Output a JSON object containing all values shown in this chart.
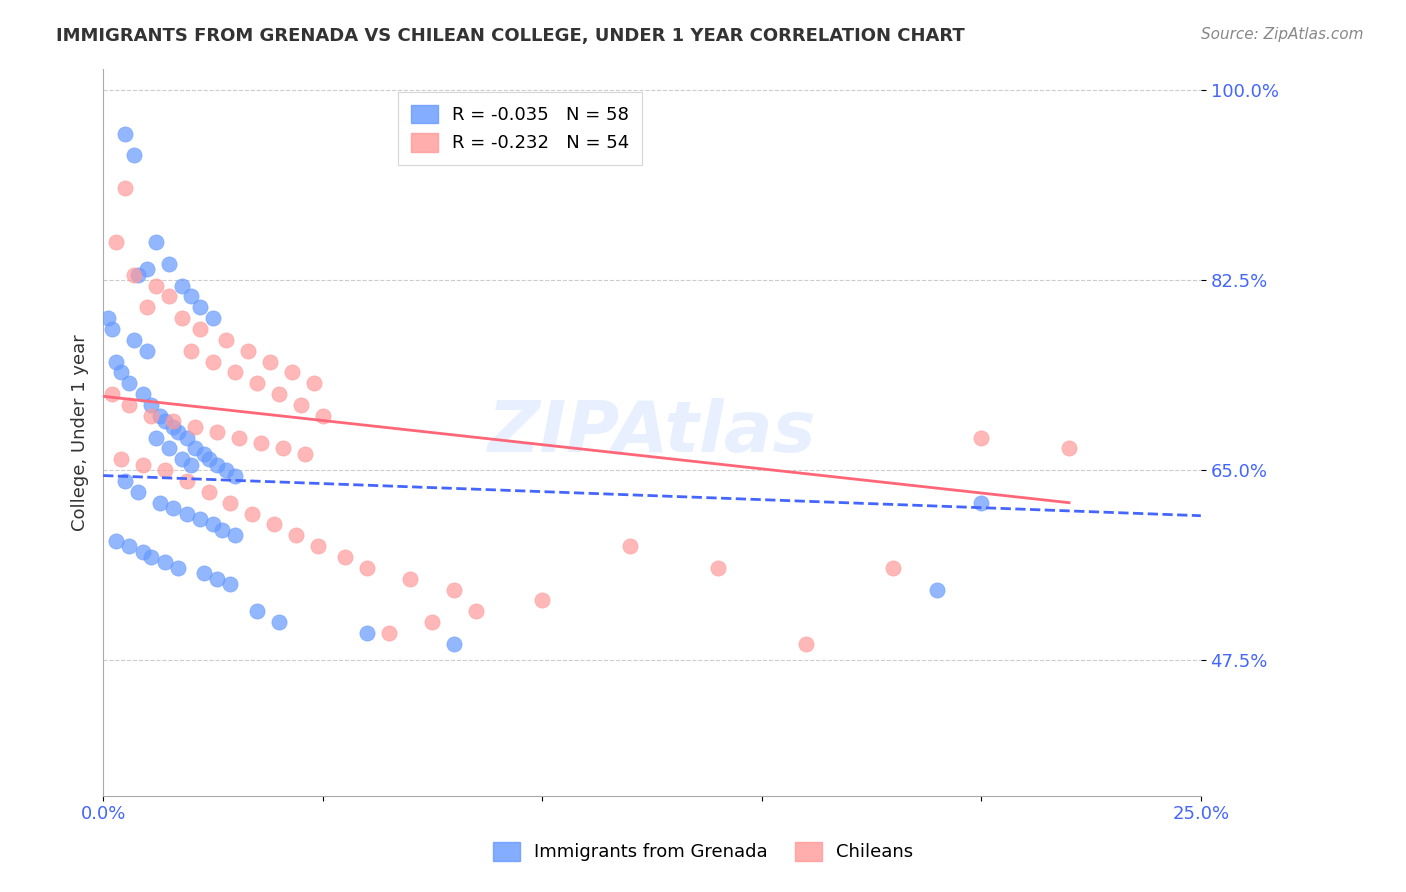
{
  "title": "IMMIGRANTS FROM GRENADA VS CHILEAN COLLEGE, UNDER 1 YEAR CORRELATION CHART",
  "source": "Source: ZipAtlas.com",
  "xlabel": "",
  "ylabel": "College, Under 1 year",
  "xlim": [
    0.0,
    0.25
  ],
  "ylim": [
    0.35,
    1.02
  ],
  "yticks": [
    0.475,
    0.65,
    0.825,
    1.0
  ],
  "ytick_labels": [
    "47.5%",
    "65.0%",
    "82.5%",
    "100.0%"
  ],
  "xticks": [
    0.0,
    0.05,
    0.1,
    0.15,
    0.2,
    0.25
  ],
  "xtick_labels": [
    "0.0%",
    "",
    "",
    "",
    "",
    "25.0%"
  ],
  "legend_r1": "R = -0.035",
  "legend_n1": "N = 58",
  "legend_r2": "R = -0.232",
  "legend_n2": "N = 54",
  "blue_color": "#6699ff",
  "pink_color": "#ff9999",
  "blue_line_color": "#4466ff",
  "pink_line_color": "#ff6677",
  "title_color": "#333333",
  "axis_label_color": "#333333",
  "tick_color": "#4466ff",
  "grid_color": "#cccccc",
  "watermark": "ZIPAtlas",
  "blue_scatter_x": [
    0.005,
    0.007,
    0.012,
    0.015,
    0.008,
    0.01,
    0.018,
    0.02,
    0.022,
    0.025,
    0.003,
    0.004,
    0.006,
    0.009,
    0.011,
    0.013,
    0.014,
    0.016,
    0.017,
    0.019,
    0.021,
    0.023,
    0.024,
    0.026,
    0.028,
    0.03,
    0.002,
    0.001,
    0.007,
    0.01,
    0.012,
    0.015,
    0.018,
    0.02,
    0.005,
    0.008,
    0.013,
    0.016,
    0.019,
    0.022,
    0.025,
    0.027,
    0.03,
    0.003,
    0.006,
    0.009,
    0.011,
    0.014,
    0.017,
    0.023,
    0.026,
    0.029,
    0.035,
    0.04,
    0.06,
    0.08,
    0.19,
    0.2
  ],
  "blue_scatter_y": [
    0.96,
    0.94,
    0.86,
    0.84,
    0.83,
    0.835,
    0.82,
    0.81,
    0.8,
    0.79,
    0.75,
    0.74,
    0.73,
    0.72,
    0.71,
    0.7,
    0.695,
    0.69,
    0.685,
    0.68,
    0.67,
    0.665,
    0.66,
    0.655,
    0.65,
    0.645,
    0.78,
    0.79,
    0.77,
    0.76,
    0.68,
    0.67,
    0.66,
    0.655,
    0.64,
    0.63,
    0.62,
    0.615,
    0.61,
    0.605,
    0.6,
    0.595,
    0.59,
    0.585,
    0.58,
    0.575,
    0.57,
    0.565,
    0.56,
    0.555,
    0.55,
    0.545,
    0.52,
    0.51,
    0.5,
    0.49,
    0.54,
    0.62
  ],
  "pink_scatter_x": [
    0.005,
    0.01,
    0.015,
    0.02,
    0.025,
    0.03,
    0.035,
    0.04,
    0.045,
    0.05,
    0.003,
    0.007,
    0.012,
    0.018,
    0.022,
    0.028,
    0.033,
    0.038,
    0.043,
    0.048,
    0.002,
    0.006,
    0.011,
    0.016,
    0.021,
    0.026,
    0.031,
    0.036,
    0.041,
    0.046,
    0.004,
    0.009,
    0.014,
    0.019,
    0.024,
    0.029,
    0.034,
    0.039,
    0.044,
    0.049,
    0.055,
    0.06,
    0.07,
    0.08,
    0.1,
    0.12,
    0.14,
    0.16,
    0.18,
    0.2,
    0.065,
    0.075,
    0.085,
    0.22
  ],
  "pink_scatter_y": [
    0.91,
    0.8,
    0.81,
    0.76,
    0.75,
    0.74,
    0.73,
    0.72,
    0.71,
    0.7,
    0.86,
    0.83,
    0.82,
    0.79,
    0.78,
    0.77,
    0.76,
    0.75,
    0.74,
    0.73,
    0.72,
    0.71,
    0.7,
    0.695,
    0.69,
    0.685,
    0.68,
    0.675,
    0.67,
    0.665,
    0.66,
    0.655,
    0.65,
    0.64,
    0.63,
    0.62,
    0.61,
    0.6,
    0.59,
    0.58,
    0.57,
    0.56,
    0.55,
    0.54,
    0.53,
    0.58,
    0.56,
    0.49,
    0.56,
    0.68,
    0.5,
    0.51,
    0.52,
    0.67
  ],
  "blue_trend_x": [
    0.0,
    0.25
  ],
  "blue_trend_y": [
    0.645,
    0.608
  ],
  "pink_trend_x": [
    0.0,
    0.22
  ],
  "pink_trend_y": [
    0.718,
    0.62
  ]
}
